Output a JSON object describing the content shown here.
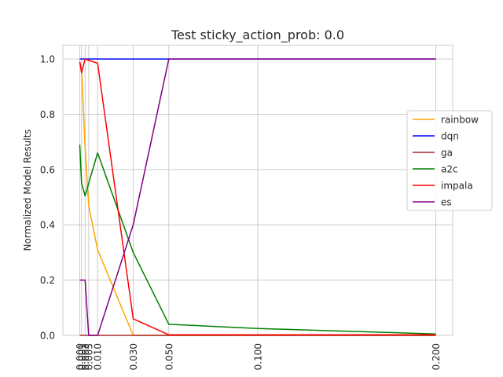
{
  "chart_data": {
    "type": "line",
    "title": "Test sticky_action_prob: 0.0",
    "xlabel": "",
    "ylabel": "Normalized Model Results",
    "x": [
      0.0,
      0.001,
      0.003,
      0.005,
      0.01,
      0.03,
      0.05,
      0.1,
      0.2
    ],
    "x_tick_labels": [
      "0.000",
      "0.001",
      "0.003",
      "0.005",
      "0.010",
      "0.030",
      "0.050",
      "0.100",
      "0.200"
    ],
    "xlim": [
      -0.0095,
      0.2095
    ],
    "ylim": [
      0.0,
      1.05
    ],
    "y_ticks": [
      0.0,
      0.2,
      0.4,
      0.6,
      0.8,
      1.0
    ],
    "y_tick_labels": [
      "0.0",
      "0.2",
      "0.4",
      "0.6",
      "0.8",
      "1.0"
    ],
    "grid": true,
    "legend_position": "right",
    "series": [
      {
        "name": "rainbow",
        "color": "#ffa500",
        "values": [
          0.99,
          0.96,
          0.68,
          0.47,
          0.31,
          0.0,
          0.0,
          0.0,
          0.0
        ]
      },
      {
        "name": "dqn",
        "color": "#0000ff",
        "values": [
          1.0,
          1.0,
          1.0,
          1.0,
          1.0,
          1.0,
          1.0,
          1.0,
          1.0
        ]
      },
      {
        "name": "ga",
        "color": "#a52a2a",
        "values": [
          0.0,
          0.0,
          0.0,
          0.0,
          0.0,
          0.0,
          0.0,
          0.0,
          0.0
        ]
      },
      {
        "name": "a2c",
        "color": "#008000",
        "values": [
          0.69,
          0.55,
          0.505,
          0.55,
          0.66,
          0.3,
          0.04,
          0.025,
          0.005
        ]
      },
      {
        "name": "impala",
        "color": "#ff0000",
        "values": [
          0.99,
          0.95,
          1.0,
          0.995,
          0.985,
          0.06,
          0.002,
          0.002,
          0.002
        ]
      },
      {
        "name": "es",
        "color": "#800080",
        "values": [
          0.2,
          0.2,
          0.2,
          0.0,
          0.0,
          0.4,
          1.0,
          1.0,
          1.0
        ]
      }
    ]
  }
}
